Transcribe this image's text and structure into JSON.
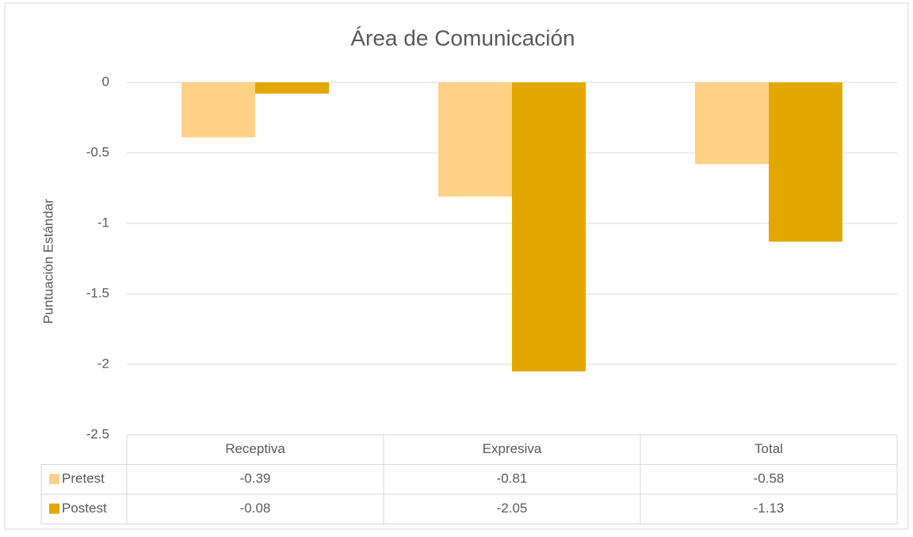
{
  "chart_data": {
    "type": "bar",
    "title": "Área de Comunicación",
    "y_label": "Puntuación Estándar",
    "categories": [
      "Receptiva",
      "Expresiva",
      "Total"
    ],
    "series": [
      {
        "name": "Pretest",
        "color": "#ffd185",
        "values": [
          -0.39,
          -0.81,
          -0.58
        ]
      },
      {
        "name": "Postest",
        "color": "#e2a800",
        "values": [
          -0.08,
          -2.05,
          -1.13
        ]
      }
    ],
    "ylim": [
      -2.5,
      0
    ],
    "yticks": [
      0,
      -0.5,
      -1,
      -1.5,
      -2,
      -2.5
    ],
    "grid": true,
    "data_table": true
  }
}
